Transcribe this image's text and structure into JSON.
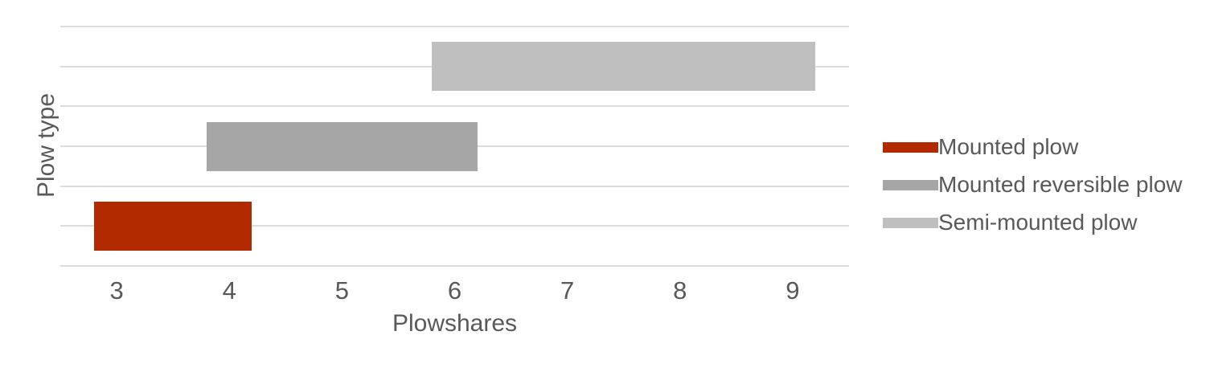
{
  "chart_data": {
    "type": "bar",
    "subtype": "horizontal-range-bars",
    "title": "",
    "xlabel": "Plowshares",
    "ylabel": "Plow type",
    "xlim": [
      2.5,
      9.5
    ],
    "x_ticks": [
      "3",
      "4",
      "5",
      "6",
      "7",
      "8",
      "9"
    ],
    "x_tick_values": [
      3,
      4,
      5,
      6,
      7,
      8,
      9
    ],
    "grid": "horizontal gridlines only",
    "n_gridlines": 7,
    "legend_position": "right",
    "categories_top_to_bottom": [
      "Semi-mounted plow",
      "Mounted reversible plow",
      "Mounted plow"
    ],
    "series": [
      {
        "name": "Mounted plow",
        "start": 2.8,
        "end": 4.2,
        "color": "#b22a00"
      },
      {
        "name": "Mounted reversible plow",
        "start": 3.8,
        "end": 6.2,
        "color": "#a6a6a6"
      },
      {
        "name": "Semi-mounted plow",
        "start": 5.8,
        "end": 9.2,
        "color": "#bfbfbf"
      }
    ]
  },
  "legend": {
    "items": [
      {
        "label": "Mounted plow",
        "color": "#b22a00"
      },
      {
        "label": "Mounted reversible plow",
        "color": "#a6a6a6"
      },
      {
        "label": "Semi-mounted plow",
        "color": "#bfbfbf"
      }
    ]
  },
  "colors": {
    "background": "#ffffff",
    "gridline": "#dcdcdc",
    "text": "#595959"
  }
}
